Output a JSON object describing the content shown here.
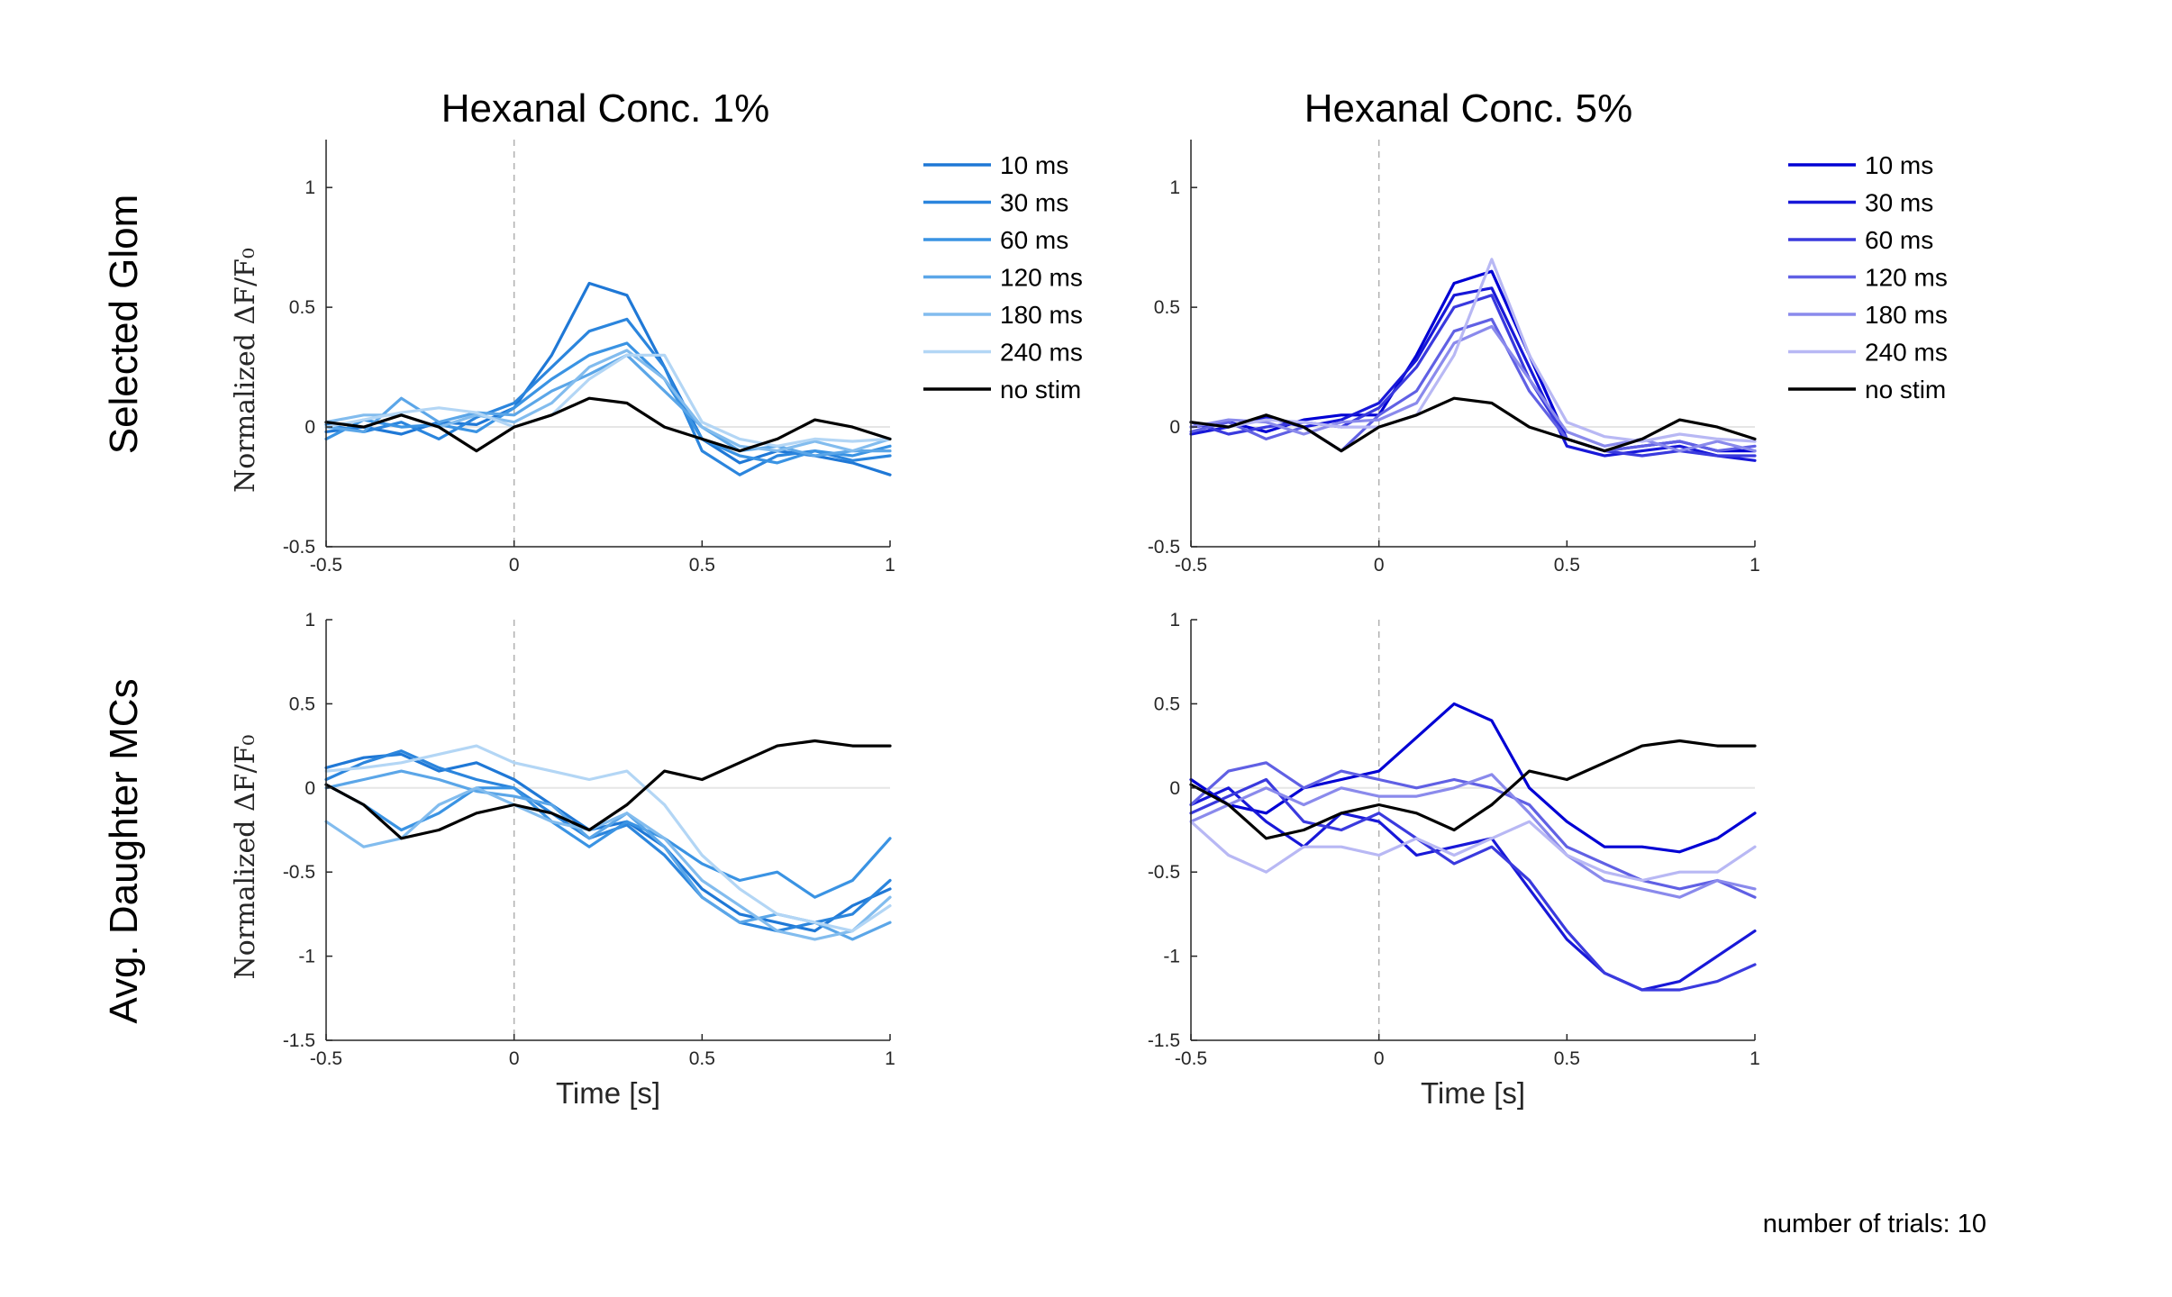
{
  "figure": {
    "footnote": "number of trials: 10",
    "col_titles": [
      "Hexanal Conc. 1%",
      "Hexanal Conc. 5%"
    ],
    "row_titles": [
      "Selected Glom",
      "Avg. Daughter MCs"
    ],
    "ylabel": "Normalized ΔF/F₀",
    "xlabel": "Time [s]",
    "zero_line_color": "#e6e6e6",
    "stim_line_color": "#b0b0b0"
  },
  "chart_data": [
    {
      "type": "line",
      "title": "Hexanal Conc. 1%",
      "row": "Selected Glom",
      "xlabel": "",
      "ylabel": "Normalized ΔF/F₀",
      "xlim": [
        -0.5,
        1
      ],
      "ylim": [
        -0.5,
        1.2
      ],
      "xticks": [
        "-0.5",
        "0",
        "0.5",
        "1"
      ],
      "yticks": [
        "-0.5",
        "0",
        "0.5",
        "1"
      ],
      "legend": "right",
      "x": [
        -0.5,
        -0.4,
        -0.3,
        -0.2,
        -0.1,
        0,
        0.1,
        0.2,
        0.3,
        0.4,
        0.5,
        0.6,
        0.7,
        0.8,
        0.9,
        1
      ],
      "series": [
        {
          "name": "10 ms",
          "color": "#1f78d6",
          "values": [
            -0.02,
            0.0,
            -0.03,
            0.02,
            0.01,
            0.08,
            0.3,
            0.6,
            0.55,
            0.25,
            -0.05,
            -0.15,
            -0.1,
            -0.12,
            -0.15,
            -0.2
          ]
        },
        {
          "name": "30 ms",
          "color": "#2b85dd",
          "values": [
            0.01,
            -0.02,
            0.02,
            -0.05,
            0.04,
            0.1,
            0.25,
            0.4,
            0.45,
            0.25,
            -0.1,
            -0.2,
            -0.12,
            -0.1,
            -0.14,
            -0.12
          ]
        },
        {
          "name": "60 ms",
          "color": "#3a93e3",
          "values": [
            -0.05,
            0.03,
            0.0,
            0.01,
            -0.02,
            0.08,
            0.2,
            0.3,
            0.35,
            0.2,
            -0.05,
            -0.12,
            -0.15,
            -0.1,
            -0.12,
            -0.08
          ]
        },
        {
          "name": "120 ms",
          "color": "#5ba6e8",
          "values": [
            0.0,
            -0.02,
            0.12,
            0.02,
            0.06,
            0.05,
            0.15,
            0.22,
            0.3,
            0.15,
            0.0,
            -0.1,
            -0.08,
            -0.12,
            -0.1,
            -0.1
          ]
        },
        {
          "name": "180 ms",
          "color": "#82bcee",
          "values": [
            0.02,
            0.05,
            0.05,
            0.0,
            0.05,
            0.02,
            0.1,
            0.25,
            0.32,
            0.2,
            0.0,
            -0.08,
            -0.1,
            -0.06,
            -0.1,
            -0.05
          ]
        },
        {
          "name": "240 ms",
          "color": "#b3d6f5",
          "values": [
            0.0,
            0.03,
            0.06,
            0.08,
            0.06,
            0.0,
            0.05,
            0.2,
            0.3,
            0.3,
            0.02,
            -0.05,
            -0.08,
            -0.05,
            -0.06,
            -0.05
          ]
        },
        {
          "name": "no stim",
          "color": "#000000",
          "values": [
            0.02,
            0.0,
            0.05,
            0.0,
            -0.1,
            0.0,
            0.05,
            0.12,
            0.1,
            0.0,
            -0.05,
            -0.1,
            -0.05,
            0.03,
            0.0,
            -0.05
          ]
        }
      ]
    },
    {
      "type": "line",
      "title": "Hexanal Conc. 5%",
      "row": "Selected Glom",
      "xlabel": "",
      "ylabel": "",
      "xlim": [
        -0.5,
        1
      ],
      "ylim": [
        -0.5,
        1.2
      ],
      "xticks": [
        "-0.5",
        "0",
        "0.5",
        "1"
      ],
      "yticks": [
        "-0.5",
        "0",
        "0.5",
        "1"
      ],
      "legend": "right",
      "x": [
        -0.5,
        -0.4,
        -0.3,
        -0.2,
        -0.1,
        0,
        0.1,
        0.2,
        0.3,
        0.4,
        0.5,
        0.6,
        0.7,
        0.8,
        0.9,
        1
      ],
      "series": [
        {
          "name": "10 ms",
          "color": "#0000d4",
          "values": [
            0.0,
            0.02,
            -0.02,
            0.03,
            0.05,
            0.05,
            0.3,
            0.6,
            0.65,
            0.3,
            -0.05,
            -0.1,
            -0.08,
            -0.06,
            -0.1,
            -0.1
          ]
        },
        {
          "name": "30 ms",
          "color": "#1818d8",
          "values": [
            -0.03,
            0.0,
            0.04,
            0.0,
            0.03,
            0.1,
            0.28,
            0.55,
            0.58,
            0.25,
            -0.08,
            -0.12,
            -0.1,
            -0.08,
            -0.12,
            -0.14
          ]
        },
        {
          "name": "60 ms",
          "color": "#3a3ade",
          "values": [
            0.02,
            -0.03,
            0.0,
            0.02,
            0.0,
            0.08,
            0.25,
            0.5,
            0.55,
            0.2,
            -0.05,
            -0.1,
            -0.12,
            -0.1,
            -0.12,
            -0.12
          ]
        },
        {
          "name": "120 ms",
          "color": "#6060e4",
          "values": [
            -0.02,
            0.02,
            -0.05,
            0.0,
            -0.1,
            0.05,
            0.15,
            0.4,
            0.45,
            0.15,
            -0.05,
            -0.1,
            -0.08,
            -0.06,
            -0.1,
            -0.08
          ]
        },
        {
          "name": "180 ms",
          "color": "#8a8aec",
          "values": [
            0.0,
            0.03,
            0.02,
            -0.03,
            0.02,
            0.03,
            0.1,
            0.35,
            0.42,
            0.2,
            -0.02,
            -0.08,
            -0.05,
            -0.1,
            -0.06,
            -0.1
          ]
        },
        {
          "name": "240 ms",
          "color": "#b8b8f4",
          "values": [
            0.02,
            0.0,
            0.03,
            0.02,
            0.0,
            0.0,
            0.05,
            0.3,
            0.7,
            0.3,
            0.02,
            -0.04,
            -0.06,
            -0.03,
            -0.05,
            -0.06
          ]
        },
        {
          "name": "no stim",
          "color": "#000000",
          "values": [
            0.02,
            0.0,
            0.05,
            0.0,
            -0.1,
            0.0,
            0.05,
            0.12,
            0.1,
            0.0,
            -0.05,
            -0.1,
            -0.05,
            0.03,
            0.0,
            -0.05
          ]
        }
      ]
    },
    {
      "type": "line",
      "title": "",
      "row": "Avg. Daughter MCs",
      "xlabel": "Time [s]",
      "ylabel": "Normalized ΔF/F₀",
      "xlim": [
        -0.5,
        1
      ],
      "ylim": [
        -1.5,
        1
      ],
      "xticks": [
        "-0.5",
        "0",
        "0.5",
        "1"
      ],
      "yticks": [
        "-1.5",
        "-1",
        "-0.5",
        "0",
        "0.5",
        "1"
      ],
      "legend": "none",
      "x": [
        -0.5,
        -0.4,
        -0.3,
        -0.2,
        -0.1,
        0,
        0.1,
        0.2,
        0.3,
        0.4,
        0.5,
        0.6,
        0.7,
        0.8,
        0.9,
        1
      ],
      "series": [
        {
          "name": "10 ms",
          "color": "#1f78d6",
          "values": [
            0.12,
            0.18,
            0.2,
            0.1,
            0.15,
            0.05,
            -0.1,
            -0.25,
            -0.2,
            -0.35,
            -0.6,
            -0.75,
            -0.8,
            -0.85,
            -0.7,
            -0.6
          ]
        },
        {
          "name": "30 ms",
          "color": "#2b85dd",
          "values": [
            0.05,
            0.15,
            0.22,
            0.12,
            0.05,
            0.0,
            -0.15,
            -0.3,
            -0.22,
            -0.4,
            -0.65,
            -0.8,
            -0.85,
            -0.8,
            -0.75,
            -0.55
          ]
        },
        {
          "name": "60 ms",
          "color": "#3a93e3",
          "values": [
            0.02,
            -0.1,
            -0.25,
            -0.15,
            0.0,
            0.0,
            -0.2,
            -0.35,
            -0.2,
            -0.3,
            -0.45,
            -0.55,
            -0.5,
            -0.65,
            -0.55,
            -0.3
          ]
        },
        {
          "name": "120 ms",
          "color": "#5ba6e8",
          "values": [
            0.0,
            0.05,
            0.1,
            0.05,
            -0.02,
            -0.05,
            -0.1,
            -0.3,
            -0.15,
            -0.35,
            -0.65,
            -0.8,
            -0.75,
            -0.8,
            -0.9,
            -0.8
          ]
        },
        {
          "name": "180 ms",
          "color": "#82bcee",
          "values": [
            -0.2,
            -0.35,
            -0.3,
            -0.1,
            0.0,
            -0.1,
            -0.2,
            -0.25,
            -0.15,
            -0.3,
            -0.55,
            -0.7,
            -0.85,
            -0.9,
            -0.85,
            -0.65
          ]
        },
        {
          "name": "240 ms",
          "color": "#b3d6f5",
          "values": [
            0.1,
            0.12,
            0.15,
            0.2,
            0.25,
            0.15,
            0.1,
            0.05,
            0.1,
            -0.1,
            -0.4,
            -0.6,
            -0.75,
            -0.8,
            -0.85,
            -0.7
          ]
        },
        {
          "name": "no stim",
          "color": "#000000",
          "values": [
            0.02,
            -0.1,
            -0.3,
            -0.25,
            -0.15,
            -0.1,
            -0.15,
            -0.25,
            -0.1,
            0.1,
            0.05,
            0.15,
            0.25,
            0.28,
            0.25,
            0.25
          ]
        }
      ]
    },
    {
      "type": "line",
      "title": "",
      "row": "Avg. Daughter MCs",
      "xlabel": "Time [s]",
      "ylabel": "",
      "xlim": [
        -0.5,
        1
      ],
      "ylim": [
        -1.5,
        1
      ],
      "xticks": [
        "-0.5",
        "0",
        "0.5",
        "1"
      ],
      "yticks": [
        "-1.5",
        "-1",
        "-0.5",
        "0",
        "0.5",
        "1"
      ],
      "legend": "none",
      "x": [
        -0.5,
        -0.4,
        -0.3,
        -0.2,
        -0.1,
        0,
        0.1,
        0.2,
        0.3,
        0.4,
        0.5,
        0.6,
        0.7,
        0.8,
        0.9,
        1
      ],
      "series": [
        {
          "name": "10 ms",
          "color": "#0000d4",
          "values": [
            0.05,
            -0.1,
            -0.15,
            0.0,
            0.05,
            0.1,
            0.3,
            0.5,
            0.4,
            0.0,
            -0.2,
            -0.35,
            -0.35,
            -0.38,
            -0.3,
            -0.15
          ]
        },
        {
          "name": "30 ms",
          "color": "#1818d8",
          "values": [
            -0.1,
            0.0,
            -0.2,
            -0.35,
            -0.15,
            -0.2,
            -0.4,
            -0.35,
            -0.3,
            -0.6,
            -0.9,
            -1.1,
            -1.2,
            -1.15,
            -1.0,
            -0.85
          ]
        },
        {
          "name": "60 ms",
          "color": "#3a3ade",
          "values": [
            -0.15,
            -0.05,
            0.05,
            -0.2,
            -0.25,
            -0.15,
            -0.3,
            -0.45,
            -0.35,
            -0.55,
            -0.85,
            -1.1,
            -1.2,
            -1.2,
            -1.15,
            -1.05
          ]
        },
        {
          "name": "120 ms",
          "color": "#6060e4",
          "values": [
            -0.1,
            0.1,
            0.15,
            0.0,
            0.1,
            0.05,
            0.0,
            0.05,
            0.0,
            -0.1,
            -0.35,
            -0.45,
            -0.55,
            -0.6,
            -0.55,
            -0.65
          ]
        },
        {
          "name": "180 ms",
          "color": "#8a8aec",
          "values": [
            -0.2,
            -0.1,
            0.0,
            -0.1,
            0.0,
            -0.05,
            -0.05,
            0.0,
            0.08,
            -0.15,
            -0.4,
            -0.55,
            -0.6,
            -0.65,
            -0.55,
            -0.6
          ]
        },
        {
          "name": "240 ms",
          "color": "#b8b8f4",
          "values": [
            -0.2,
            -0.4,
            -0.5,
            -0.35,
            -0.35,
            -0.4,
            -0.3,
            -0.4,
            -0.3,
            -0.2,
            -0.4,
            -0.5,
            -0.55,
            -0.5,
            -0.5,
            -0.35
          ]
        },
        {
          "name": "no stim",
          "color": "#000000",
          "values": [
            0.02,
            -0.1,
            -0.3,
            -0.25,
            -0.15,
            -0.1,
            -0.15,
            -0.25,
            -0.1,
            0.1,
            0.05,
            0.15,
            0.25,
            0.28,
            0.25,
            0.25
          ]
        }
      ]
    }
  ]
}
